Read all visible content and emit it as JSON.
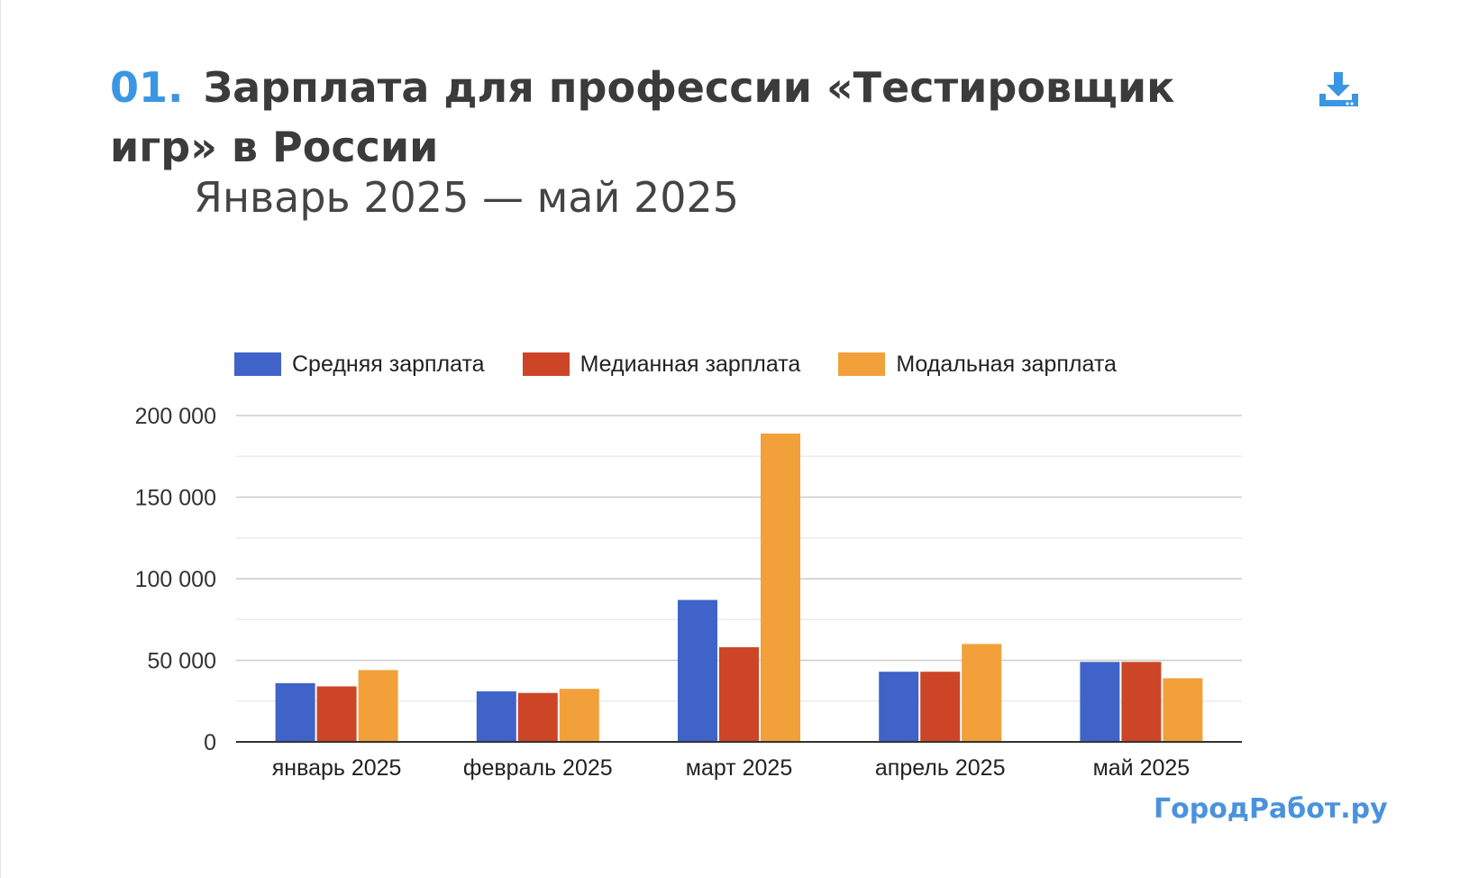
{
  "header": {
    "number": "01.",
    "title": "Зарплата для профессии «Тестировщик игр» в России",
    "subtitle": "Январь 2025 — май 2025",
    "download_icon": "download-icon"
  },
  "brand": "ГородРабот.ру",
  "colors": {
    "accent": "#3a96e2",
    "series": [
      "#3f63c8",
      "#cc4527",
      "#f2a03a"
    ],
    "brand": "#4a93dc"
  },
  "chart_data": {
    "type": "bar",
    "title": "",
    "xlabel": "",
    "ylabel": "",
    "categories": [
      "январь 2025",
      "февраль 2025",
      "март 2025",
      "апрель 2025",
      "май 2025"
    ],
    "series": [
      {
        "name": "Средняя зарплата",
        "values": [
          36000,
          31000,
          87000,
          43000,
          49000
        ]
      },
      {
        "name": "Медианная зарплата",
        "values": [
          34000,
          30000,
          58000,
          43000,
          49000
        ]
      },
      {
        "name": "Модальная зарплата",
        "values": [
          44000,
          32500,
          189000,
          60000,
          39000
        ]
      }
    ],
    "ylim": [
      0,
      200000
    ],
    "yticks": [
      "0",
      "50 000",
      "100 000",
      "150 000",
      "200 000"
    ],
    "ytick_values": [
      0,
      50000,
      100000,
      150000,
      200000
    ],
    "grid": true,
    "legend": "top-left"
  }
}
